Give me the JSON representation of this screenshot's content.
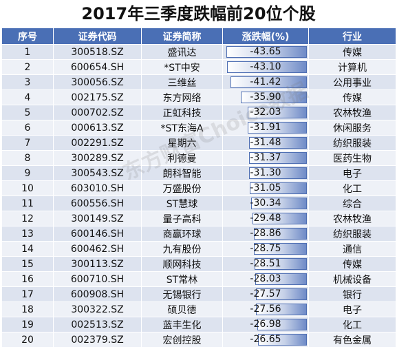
{
  "title": "2017年三季度跌幅前20位个股",
  "columns": [
    "序号",
    "证券代码",
    "证券简称",
    "涨跌幅(%)",
    "行业"
  ],
  "rows": [
    {
      "no": "1",
      "code": "300518.SZ",
      "name": "盛讯达",
      "change": "-43.65",
      "industry": "传媒"
    },
    {
      "no": "2",
      "code": "600654.SH",
      "name": "*ST中安",
      "change": "-43.10",
      "industry": "计算机"
    },
    {
      "no": "3",
      "code": "300056.SZ",
      "name": "三维丝",
      "change": "-41.42",
      "industry": "公用事业"
    },
    {
      "no": "4",
      "code": "002175.SZ",
      "name": "东方网络",
      "change": "-35.90",
      "industry": "传媒"
    },
    {
      "no": "5",
      "code": "000702.SZ",
      "name": "正虹科技",
      "change": "-32.03",
      "industry": "农林牧渔"
    },
    {
      "no": "6",
      "code": "000613.SZ",
      "name": "*ST东海A",
      "change": "-31.91",
      "industry": "休闲服务"
    },
    {
      "no": "7",
      "code": "002291.SZ",
      "name": "星期六",
      "change": "-31.48",
      "industry": "纺织服装"
    },
    {
      "no": "8",
      "code": "300289.SZ",
      "name": "利德曼",
      "change": "-31.37",
      "industry": "医药生物"
    },
    {
      "no": "9",
      "code": "300543.SZ",
      "name": "朗科智能",
      "change": "-31.30",
      "industry": "电子"
    },
    {
      "no": "10",
      "code": "603010.SH",
      "name": "万盛股份",
      "change": "-31.05",
      "industry": "化工"
    },
    {
      "no": "11",
      "code": "600556.SH",
      "name": "ST慧球",
      "change": "-30.34",
      "industry": "综合"
    },
    {
      "no": "12",
      "code": "300149.SZ",
      "name": "量子高科",
      "change": "-29.48",
      "industry": "农林牧渔"
    },
    {
      "no": "13",
      "code": "600146.SH",
      "name": "商赢环球",
      "change": "-28.86",
      "industry": "纺织服装"
    },
    {
      "no": "14",
      "code": "600462.SH",
      "name": "九有股份",
      "change": "-28.75",
      "industry": "通信"
    },
    {
      "no": "15",
      "code": "300113.SZ",
      "name": "顺网科技",
      "change": "-28.51",
      "industry": "传媒"
    },
    {
      "no": "16",
      "code": "600710.SH",
      "name": "ST常林",
      "change": "-28.03",
      "industry": "机械设备"
    },
    {
      "no": "17",
      "code": "600908.SH",
      "name": "无锡银行",
      "change": "-27.57",
      "industry": "银行"
    },
    {
      "no": "18",
      "code": "300322.SZ",
      "name": "硕贝德",
      "change": "-27.56",
      "industry": "电子"
    },
    {
      "no": "19",
      "code": "002513.SZ",
      "name": "蓝丰生化",
      "change": "-26.98",
      "industry": "化工"
    },
    {
      "no": "20",
      "code": "002379.SZ",
      "name": "宏创控股",
      "change": "-26.65",
      "industry": "有色金属"
    }
  ],
  "bar_max_abs_change": 43.65,
  "watermark": "东方财富Choice数据",
  "colors": {
    "header_bg": "#4a6fb5",
    "row_odd": "#dde3ef",
    "row_even": "#eef1f7",
    "bar_end": "#6f8bc7"
  }
}
